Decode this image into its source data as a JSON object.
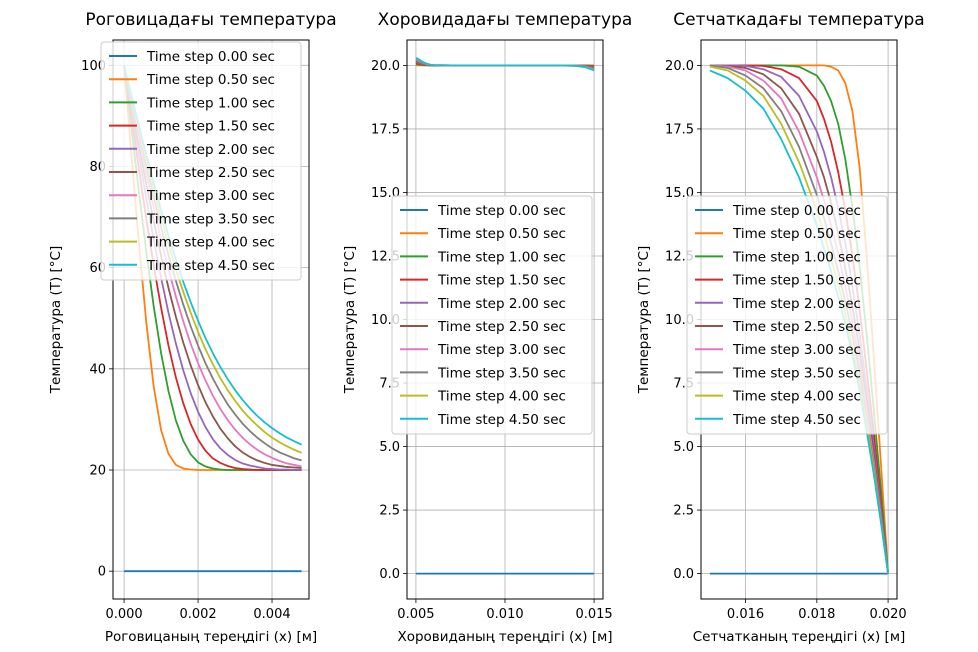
{
  "figure": {
    "background": "#ffffff"
  },
  "chart_data": [
    {
      "type": "line",
      "title": "Роговицадағы температура",
      "xlabel": "Роговицаның тереңдігі (x) [м]",
      "ylabel": "Температура (T) [°C]",
      "xlim": [
        -0.0003,
        0.005
      ],
      "ylim": [
        -5.5,
        105
      ],
      "xticks": [
        0.0,
        0.002,
        0.004
      ],
      "xtick_labels": [
        "0.000",
        "0.002",
        "0.004"
      ],
      "yticks": [
        0,
        20,
        40,
        60,
        80,
        100
      ],
      "ytick_labels": [
        "0",
        "20",
        "40",
        "60",
        "80",
        "100"
      ],
      "grid": true,
      "legend_position": "upper-left",
      "x": [
        0.0,
        0.0002,
        0.0004,
        0.0006,
        0.0008,
        0.001,
        0.0012,
        0.0014,
        0.0016,
        0.0018,
        0.002,
        0.0022,
        0.0024,
        0.0026,
        0.0028,
        0.003,
        0.0032,
        0.0034,
        0.0036,
        0.0038,
        0.004,
        0.0042,
        0.0044,
        0.0046,
        0.0048
      ],
      "series": [
        {
          "name": "Time step 0.00 sec",
          "color": "#1f77b4",
          "values": [
            0,
            0,
            0,
            0,
            0,
            0,
            0,
            0,
            0,
            0,
            0,
            0,
            0,
            0,
            0,
            0,
            0,
            0,
            0,
            0,
            0,
            0,
            0,
            0,
            0
          ]
        },
        {
          "name": "Time step 0.50 sec",
          "color": "#ff7f0e",
          "values": [
            100.0,
            82.1,
            64.9,
            49.2,
            36.5,
            27.9,
            23.2,
            21.0,
            20.3,
            20.1,
            20.0,
            20.0,
            20.0,
            20.0,
            20.0,
            20.0,
            20.0,
            20.0,
            20.0,
            20.0,
            20.0,
            20.0,
            20.0,
            20.0,
            20.0
          ]
        },
        {
          "name": "Time step 1.00 sec",
          "color": "#2ca02c",
          "values": [
            100.0,
            87.4,
            75.0,
            63.2,
            52.4,
            43.1,
            35.6,
            29.8,
            25.8,
            23.1,
            21.5,
            20.7,
            20.3,
            20.1,
            20.0,
            20.0,
            20.0,
            20.0,
            20.0,
            20.0,
            20.0,
            20.0,
            20.0,
            20.0,
            20.0
          ]
        },
        {
          "name": "Time step 1.50 sec",
          "color": "#d62728",
          "values": [
            100.0,
            89.7,
            79.5,
            69.7,
            60.5,
            52.1,
            44.6,
            38.3,
            33.2,
            29.1,
            26.0,
            23.8,
            22.3,
            21.4,
            20.8,
            20.4,
            20.2,
            20.1,
            20.0,
            20.0,
            20.0,
            20.0,
            20.0,
            20.0,
            20.0
          ]
        },
        {
          "name": "Time step 2.00 sec",
          "color": "#9467bd",
          "values": [
            100.0,
            91.1,
            82.3,
            73.7,
            65.6,
            58.0,
            51.1,
            45.0,
            39.7,
            35.2,
            31.5,
            28.5,
            26.1,
            24.3,
            23.0,
            22.0,
            21.3,
            20.9,
            20.6,
            20.3,
            20.2,
            20.1,
            20.1,
            20.0,
            20.0
          ]
        },
        {
          "name": "Time step 2.50 sec",
          "color": "#8c564b",
          "values": [
            100.0,
            92.0,
            84.2,
            76.5,
            69.2,
            62.3,
            56.0,
            50.3,
            45.2,
            40.7,
            36.8,
            33.4,
            30.6,
            28.2,
            26.3,
            24.7,
            23.5,
            22.6,
            21.9,
            21.4,
            21.0,
            20.8,
            20.6,
            20.5,
            20.4
          ]
        },
        {
          "name": "Time step 3.00 sec",
          "color": "#e377c2",
          "values": [
            100.0,
            92.7,
            85.6,
            78.6,
            71.9,
            65.6,
            59.7,
            54.3,
            49.4,
            45.0,
            41.1,
            37.7,
            34.7,
            32.1,
            29.9,
            28.0,
            26.4,
            25.1,
            24.0,
            23.1,
            22.4,
            21.8,
            21.3,
            21.0,
            20.7
          ]
        },
        {
          "name": "Time step 3.50 sec",
          "color": "#7f7f7f",
          "values": [
            100.0,
            93.2,
            86.6,
            80.1,
            73.9,
            68.0,
            62.5,
            57.4,
            52.7,
            48.4,
            44.6,
            41.1,
            38.1,
            35.4,
            33.0,
            31.0,
            29.2,
            27.7,
            26.4,
            25.3,
            24.3,
            23.5,
            22.9,
            22.3,
            21.9
          ]
        },
        {
          "name": "Time step 4.00 sec",
          "color": "#bcbd22",
          "values": [
            100.0,
            93.6,
            87.4,
            81.3,
            75.4,
            69.8,
            64.6,
            59.7,
            55.2,
            51.1,
            47.3,
            43.9,
            40.9,
            38.2,
            35.8,
            33.7,
            31.8,
            30.2,
            28.8,
            27.5,
            26.4,
            25.5,
            24.7,
            24.0,
            23.4
          ]
        },
        {
          "name": "Time step 4.50 sec",
          "color": "#17becf",
          "values": [
            100.0,
            94.0,
            88.1,
            82.3,
            76.7,
            71.4,
            66.3,
            61.6,
            57.2,
            53.2,
            49.5,
            46.1,
            43.1,
            40.4,
            38.0,
            35.8,
            33.9,
            32.2,
            30.7,
            29.4,
            28.3,
            27.3,
            26.4,
            25.7,
            25.0
          ]
        }
      ]
    },
    {
      "type": "line",
      "title": "Хоровидадағы температура",
      "xlabel": "Хоровиданың тереңдігі (x) [м]",
      "ylabel": "Температура (T) [°C]",
      "xlim": [
        0.0045,
        0.0155
      ],
      "ylim": [
        -1.0,
        21.0
      ],
      "xticks": [
        0.005,
        0.01,
        0.015
      ],
      "xtick_labels": [
        "0.005",
        "0.010",
        "0.015"
      ],
      "yticks": [
        0.0,
        2.5,
        5.0,
        7.5,
        10.0,
        12.5,
        15.0,
        17.5,
        20.0
      ],
      "ytick_labels": [
        "0.0",
        "2.5",
        "5.0",
        "7.5",
        "10.0",
        "12.5",
        "15.0",
        "17.5",
        "20.0"
      ],
      "grid": true,
      "legend_position": "center-left",
      "x": [
        0.005,
        0.0052,
        0.0054,
        0.0056,
        0.0058,
        0.006,
        0.007,
        0.008,
        0.009,
        0.01,
        0.011,
        0.012,
        0.013,
        0.014,
        0.0145,
        0.0148,
        0.015
      ],
      "series": [
        {
          "name": "Time step 0.00 sec",
          "color": "#1f77b4",
          "values": [
            0,
            0,
            0,
            0,
            0,
            0,
            0,
            0,
            0,
            0,
            0,
            0,
            0,
            0,
            0,
            0,
            0
          ]
        },
        {
          "name": "Time step 0.50 sec",
          "color": "#ff7f0e",
          "values": [
            20.0,
            20.0,
            20.0,
            20.0,
            20.0,
            20.0,
            20.0,
            20.0,
            20.0,
            20.0,
            20.0,
            20.0,
            20.0,
            20.0,
            20.0,
            20.0,
            20.0
          ]
        },
        {
          "name": "Time step 1.00 sec",
          "color": "#2ca02c",
          "values": [
            20.05,
            20.03,
            20.01,
            20.0,
            20.0,
            20.0,
            20.0,
            20.0,
            20.0,
            20.0,
            20.0,
            20.0,
            20.0,
            20.0,
            20.0,
            19.99,
            19.98
          ]
        },
        {
          "name": "Time step 1.50 sec",
          "color": "#d62728",
          "values": [
            20.1,
            20.06,
            20.03,
            20.01,
            20.0,
            20.0,
            20.0,
            20.0,
            20.0,
            20.0,
            20.0,
            20.0,
            20.0,
            20.0,
            19.99,
            19.97,
            19.95
          ]
        },
        {
          "name": "Time step 2.00 sec",
          "color": "#9467bd",
          "values": [
            20.14,
            20.09,
            20.05,
            20.02,
            20.01,
            20.0,
            20.0,
            20.0,
            20.0,
            20.0,
            20.0,
            20.0,
            20.0,
            20.0,
            19.98,
            19.95,
            19.92
          ]
        },
        {
          "name": "Time step 2.50 sec",
          "color": "#8c564b",
          "values": [
            20.18,
            20.12,
            20.07,
            20.03,
            20.01,
            20.0,
            20.0,
            20.0,
            20.0,
            20.0,
            20.0,
            20.0,
            20.0,
            19.99,
            19.97,
            19.93,
            19.89
          ]
        },
        {
          "name": "Time step 3.00 sec",
          "color": "#e377c2",
          "values": [
            20.22,
            20.15,
            20.09,
            20.04,
            20.02,
            20.01,
            20.0,
            20.0,
            20.0,
            20.0,
            20.0,
            20.0,
            20.0,
            19.99,
            19.96,
            19.91,
            19.86
          ]
        },
        {
          "name": "Time step 3.50 sec",
          "color": "#7f7f7f",
          "values": [
            20.25,
            20.18,
            20.1,
            20.05,
            20.02,
            20.01,
            20.0,
            20.0,
            20.0,
            20.0,
            20.0,
            20.0,
            20.0,
            19.99,
            19.95,
            19.9,
            19.84
          ]
        },
        {
          "name": "Time step 4.00 sec",
          "color": "#bcbd22",
          "values": [
            20.28,
            20.2,
            20.12,
            20.06,
            20.03,
            20.01,
            20.0,
            20.0,
            20.0,
            20.0,
            20.0,
            20.0,
            20.0,
            19.98,
            19.94,
            19.88,
            19.82
          ]
        },
        {
          "name": "Time step 4.50 sec",
          "color": "#17becf",
          "values": [
            20.3,
            20.22,
            20.13,
            20.07,
            20.03,
            20.01,
            20.0,
            20.0,
            20.0,
            20.0,
            20.0,
            20.0,
            20.0,
            19.98,
            19.93,
            19.86,
            19.8
          ]
        }
      ]
    },
    {
      "type": "line",
      "title": "Сетчаткадағы температура",
      "xlabel": "Сетчатканың тереңдігі (x) [м]",
      "ylabel": "Температура (T) [°C]",
      "xlim": [
        0.01475,
        0.02025
      ],
      "ylim": [
        -1.0,
        21.0
      ],
      "xticks": [
        0.016,
        0.018,
        0.02
      ],
      "xtick_labels": [
        "0.016",
        "0.018",
        "0.020"
      ],
      "yticks": [
        0.0,
        2.5,
        5.0,
        7.5,
        10.0,
        12.5,
        15.0,
        17.5,
        20.0
      ],
      "ytick_labels": [
        "0.0",
        "2.5",
        "5.0",
        "7.5",
        "10.0",
        "12.5",
        "15.0",
        "17.5",
        "20.0"
      ],
      "grid": true,
      "legend_position": "center-left",
      "x": [
        0.015,
        0.0155,
        0.016,
        0.0165,
        0.017,
        0.0175,
        0.018,
        0.0182,
        0.0184,
        0.0186,
        0.0188,
        0.019,
        0.0192,
        0.0194,
        0.0196,
        0.0198,
        0.02
      ],
      "series": [
        {
          "name": "Time step 0.00 sec",
          "color": "#1f77b4",
          "values": [
            0,
            0,
            0,
            0,
            0,
            0,
            0,
            0,
            0,
            0,
            0,
            0,
            0,
            0,
            0,
            0,
            0
          ]
        },
        {
          "name": "Time step 0.50 sec",
          "color": "#ff7f0e",
          "values": [
            20.0,
            20.0,
            20.0,
            20.0,
            20.0,
            20.0,
            20.0,
            20.0,
            19.95,
            19.8,
            19.3,
            18.2,
            16.0,
            12.5,
            8.5,
            4.3,
            0.0
          ]
        },
        {
          "name": "Time step 1.00 sec",
          "color": "#2ca02c",
          "values": [
            20.0,
            20.0,
            20.0,
            20.0,
            20.0,
            19.95,
            19.6,
            19.2,
            18.6,
            17.7,
            16.3,
            14.4,
            12.1,
            9.4,
            6.4,
            3.3,
            0.0
          ]
        },
        {
          "name": "Time step 1.50 sec",
          "color": "#d62728",
          "values": [
            20.0,
            20.0,
            20.0,
            19.98,
            19.85,
            19.5,
            18.6,
            17.9,
            17.0,
            15.8,
            14.3,
            12.5,
            10.4,
            8.0,
            5.5,
            2.8,
            0.0
          ]
        },
        {
          "name": "Time step 2.00 sec",
          "color": "#9467bd",
          "values": [
            20.0,
            20.0,
            19.98,
            19.85,
            19.55,
            18.8,
            17.4,
            16.6,
            15.6,
            14.4,
            13.0,
            11.3,
            9.4,
            7.3,
            5.0,
            2.55,
            0.0
          ]
        },
        {
          "name": "Time step 2.50 sec",
          "color": "#8c564b",
          "values": [
            20.0,
            19.98,
            19.9,
            19.65,
            19.1,
            18.1,
            16.4,
            15.6,
            14.6,
            13.4,
            12.0,
            10.5,
            8.8,
            6.8,
            4.7,
            2.4,
            0.0
          ]
        },
        {
          "name": "Time step 3.00 sec",
          "color": "#e377c2",
          "values": [
            20.0,
            19.95,
            19.8,
            19.4,
            18.7,
            17.4,
            15.6,
            14.7,
            13.7,
            12.6,
            11.3,
            9.9,
            8.3,
            6.4,
            4.4,
            2.25,
            0.0
          ]
        },
        {
          "name": "Time step 3.50 sec",
          "color": "#7f7f7f",
          "values": [
            20.0,
            19.9,
            19.6,
            19.1,
            18.2,
            16.8,
            14.9,
            14.0,
            13.0,
            11.9,
            10.7,
            9.4,
            7.9,
            6.1,
            4.2,
            2.15,
            0.0
          ]
        },
        {
          "name": "Time step 4.00 sec",
          "color": "#bcbd22",
          "values": [
            19.95,
            19.8,
            19.4,
            18.8,
            17.7,
            16.2,
            14.3,
            13.4,
            12.4,
            11.4,
            10.2,
            8.9,
            7.5,
            5.9,
            4.05,
            2.05,
            0.0
          ]
        },
        {
          "name": "Time step 4.50 sec",
          "color": "#17becf",
          "values": [
            19.8,
            19.5,
            19.0,
            18.3,
            17.1,
            15.6,
            13.7,
            12.8,
            11.9,
            10.9,
            9.8,
            8.6,
            7.2,
            5.6,
            3.9,
            2.0,
            0.0
          ]
        }
      ]
    }
  ]
}
